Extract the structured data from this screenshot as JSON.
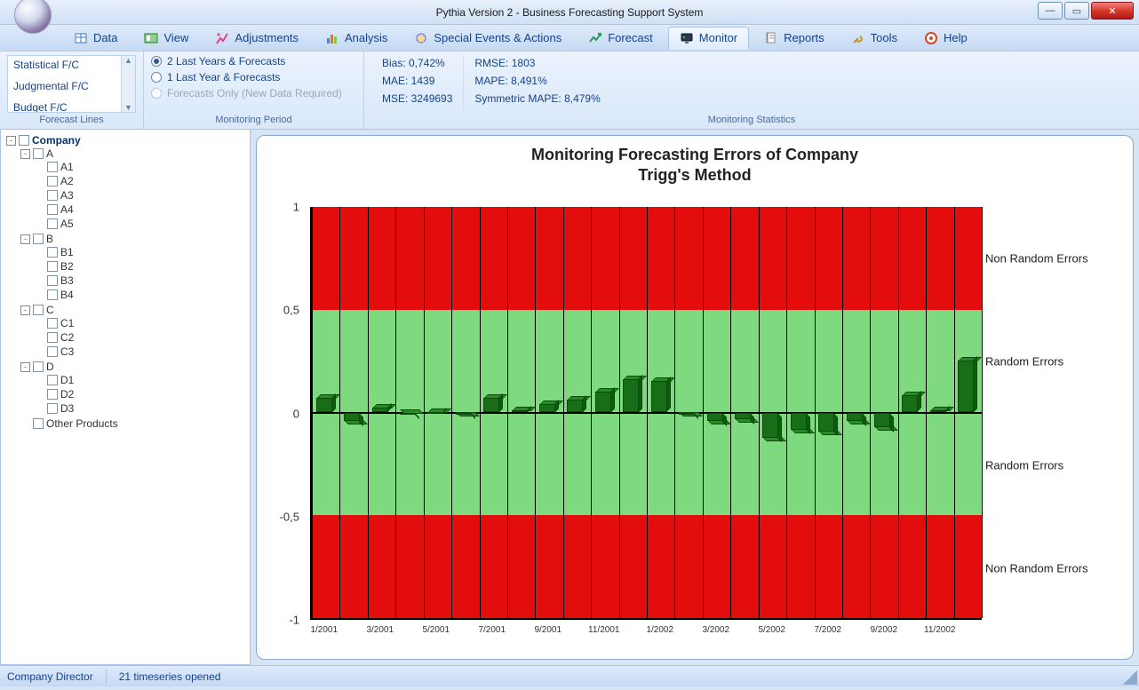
{
  "window": {
    "title": "Pythia Version 2 - Business Forecasting Support System"
  },
  "ribbon": {
    "tabs": [
      {
        "label": "Data",
        "icon": "data-icon"
      },
      {
        "label": "View",
        "icon": "view-icon"
      },
      {
        "label": "Adjustments",
        "icon": "adjustments-icon"
      },
      {
        "label": "Analysis",
        "icon": "analysis-icon"
      },
      {
        "label": "Special Events & Actions",
        "icon": "events-icon"
      },
      {
        "label": "Forecast",
        "icon": "forecast-icon"
      },
      {
        "label": "Monitor",
        "icon": "monitor-icon",
        "active": true
      },
      {
        "label": "Reports",
        "icon": "reports-icon"
      },
      {
        "label": "Tools",
        "icon": "tools-icon"
      },
      {
        "label": "Help",
        "icon": "help-icon"
      }
    ],
    "groups": {
      "forecast_lines": {
        "caption": "Forecast Lines",
        "items": [
          "Statistical F/C",
          "Judgmental F/C",
          "Budget F/C"
        ]
      },
      "monitoring_period": {
        "caption": "Monitoring Period",
        "options": [
          {
            "label": "2 Last Years & Forecasts",
            "selected": true,
            "disabled": false
          },
          {
            "label": "1 Last Year & Forecasts",
            "selected": false,
            "disabled": false
          },
          {
            "label": "Forecasts Only (New Data Required)",
            "selected": false,
            "disabled": true
          }
        ]
      },
      "monitoring_statistics": {
        "caption": "Monitoring Statistics",
        "col1": {
          "bias": "Bias: 0,742%",
          "mae": "MAE: 1439",
          "mse": "MSE: 3249693"
        },
        "col2": {
          "rmse": "RMSE: 1803",
          "mape": "MAPE: 8,491%",
          "smape": "Symmetric MAPE: 8,479%"
        }
      }
    }
  },
  "tree": {
    "root": "Company",
    "groups": [
      {
        "label": "A",
        "children": [
          "A1",
          "A2",
          "A3",
          "A4",
          "A5"
        ]
      },
      {
        "label": "B",
        "children": [
          "B1",
          "B2",
          "B3",
          "B4"
        ]
      },
      {
        "label": "C",
        "children": [
          "C1",
          "C2",
          "C3"
        ]
      },
      {
        "label": "D",
        "children": [
          "D1",
          "D2",
          "D3"
        ]
      }
    ],
    "extra": "Other Products"
  },
  "chart": {
    "type": "bar",
    "title_line1": "Monitoring Forecasting Errors of Company",
    "title_line2": "Trigg's Method",
    "ylim": [
      -1,
      1
    ],
    "yticks": [
      -1,
      -0.5,
      0,
      0.5,
      1
    ],
    "ytick_labels": [
      "-1",
      "-0,5",
      "0",
      "0,5",
      "1"
    ],
    "x_categories": [
      "1/2001",
      "2/2001",
      "3/2001",
      "4/2001",
      "5/2001",
      "6/2001",
      "7/2001",
      "8/2001",
      "9/2001",
      "10/2001",
      "11/2001",
      "12/2001",
      "1/2002",
      "2/2002",
      "3/2002",
      "4/2002",
      "5/2002",
      "6/2002",
      "7/2002",
      "8/2002",
      "9/2002",
      "10/2002",
      "11/2002",
      "12/2002"
    ],
    "x_tick_every": 2,
    "values": [
      0.09,
      -0.06,
      0.04,
      -0.005,
      0.02,
      -0.02,
      0.09,
      0.03,
      0.06,
      0.08,
      0.12,
      0.18,
      0.17,
      -0.02,
      -0.06,
      -0.05,
      -0.14,
      -0.1,
      -0.11,
      -0.06,
      -0.09,
      0.1,
      0.03,
      0.27
    ],
    "bands": [
      {
        "from": 0.5,
        "to": 1.0,
        "color": "#e30d0d",
        "label": "Non Random Errors"
      },
      {
        "from": 0.0,
        "to": 0.5,
        "color": "#7fd97f",
        "label": "Random Errors"
      },
      {
        "from": -0.5,
        "to": 0.0,
        "color": "#7fd97f",
        "label": "Random Errors"
      },
      {
        "from": -1.0,
        "to": -0.5,
        "color": "#e30d0d",
        "label": "Non Random Errors"
      }
    ],
    "bar_color": "#176e17",
    "grid_color": "#000000",
    "background_color": "#ffffff"
  },
  "status": {
    "left": "Company Director",
    "right": "21 timeseries opened"
  }
}
